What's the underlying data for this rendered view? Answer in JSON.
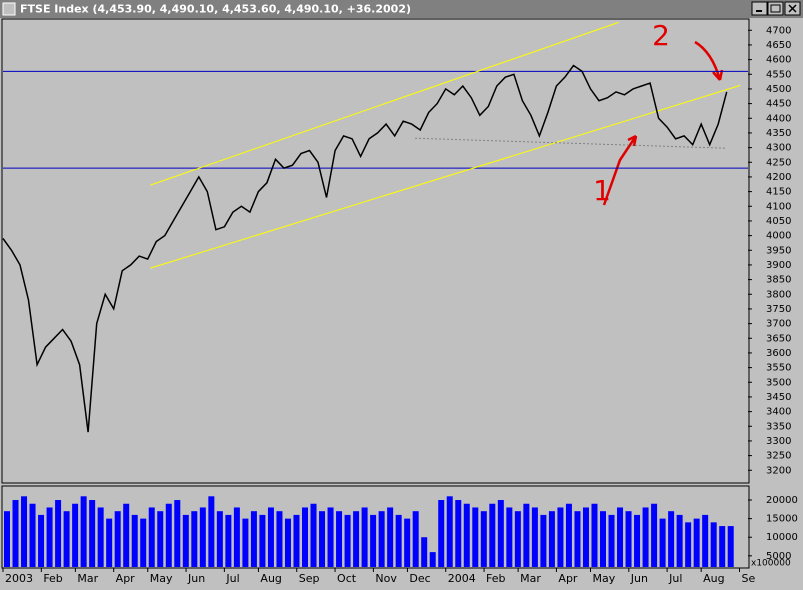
{
  "chart_data": [
    {
      "type": "line",
      "title": "FTSE Index (4,453.90, 4,490.10, 4,453.60, 4,490.10, +36.2002)",
      "x": [
        0,
        1,
        2,
        3,
        4,
        5,
        6,
        7,
        8,
        9,
        10,
        11,
        12,
        13,
        14,
        15,
        16,
        17,
        18,
        19,
        20,
        21,
        22,
        23,
        24,
        25,
        26,
        27,
        28,
        29,
        30,
        31,
        32,
        33,
        34,
        35,
        36,
        37,
        38,
        39,
        40,
        41,
        42,
        43,
        44,
        45,
        46,
        47,
        48,
        49,
        50,
        51,
        52,
        53,
        54,
        55,
        56,
        57,
        58,
        59,
        60,
        61,
        62,
        63,
        64,
        65,
        66,
        67,
        68,
        69,
        70,
        71,
        72,
        73,
        74,
        75,
        76,
        77,
        78,
        79,
        80,
        81,
        82,
        83,
        84,
        85
      ],
      "series": [
        {
          "color": "#000000",
          "values": [
            3990,
            3950,
            3900,
            3780,
            3560,
            3620,
            3650,
            3680,
            3640,
            3560,
            3330,
            3700,
            3800,
            3750,
            3880,
            3900,
            3930,
            3920,
            3980,
            4000,
            4050,
            4100,
            4150,
            4200,
            4150,
            4020,
            4030,
            4080,
            4100,
            4080,
            4150,
            4180,
            4260,
            4230,
            4240,
            4280,
            4290,
            4250,
            4130,
            4290,
            4340,
            4330,
            4270,
            4330,
            4350,
            4380,
            4340,
            4390,
            4380,
            4360,
            4420,
            4450,
            4500,
            4480,
            4510,
            4470,
            4410,
            4440,
            4510,
            4540,
            4550,
            4460,
            4410,
            4340,
            4420,
            4510,
            4540,
            4580,
            4560,
            4500,
            4460,
            4470,
            4490,
            4480,
            4500,
            4510,
            4520,
            4400,
            4370,
            4330,
            4340,
            4310,
            4380,
            4310,
            4380,
            4490
          ]
        }
      ],
      "xlim": [
        0,
        87.5
      ],
      "ylim": [
        3160,
        4735
      ],
      "yticks": [
        3200,
        3250,
        3300,
        3350,
        3400,
        3450,
        3500,
        3550,
        3600,
        3650,
        3700,
        3750,
        3800,
        3850,
        3900,
        3950,
        4000,
        4050,
        4100,
        4150,
        4200,
        4250,
        4300,
        4350,
        4400,
        4450,
        4500,
        4550,
        4600,
        4650,
        4700
      ],
      "hlines": [
        {
          "value": 4560,
          "color": "#0000c0"
        },
        {
          "value": 4230,
          "color": "#0000c0"
        }
      ],
      "trend_lines": [
        {
          "color": "#ffff00",
          "x": [
            17.3,
            72.3
          ],
          "y": [
            4172,
            4727
          ]
        },
        {
          "color": "#ffff00",
          "x": [
            17.3,
            86.6
          ],
          "y": [
            3889,
            4512
          ]
        },
        {
          "color": "#808080",
          "x": [
            48.4,
            84.8
          ],
          "y": [
            4332,
            4298
          ]
        }
      ],
      "annotations": [
        "1",
        "2"
      ]
    },
    {
      "type": "bar",
      "x": [
        0,
        1,
        2,
        3,
        4,
        5,
        6,
        7,
        8,
        9,
        10,
        11,
        12,
        13,
        14,
        15,
        16,
        17,
        18,
        19,
        20,
        21,
        22,
        23,
        24,
        25,
        26,
        27,
        28,
        29,
        30,
        31,
        32,
        33,
        34,
        35,
        36,
        37,
        38,
        39,
        40,
        41,
        42,
        43,
        44,
        45,
        46,
        47,
        48,
        49,
        50,
        51,
        52,
        53,
        54,
        55,
        56,
        57,
        58,
        59,
        60,
        61,
        62,
        63,
        64,
        65,
        66,
        67,
        68,
        69,
        70,
        71,
        72,
        73,
        74,
        75,
        76,
        77,
        78,
        79,
        80,
        81,
        82,
        83,
        84,
        85
      ],
      "values": [
        17000,
        20000,
        21000,
        19000,
        16000,
        18000,
        20000,
        17000,
        19000,
        21000,
        20000,
        18000,
        15000,
        17000,
        19000,
        16000,
        15000,
        18000,
        17000,
        19000,
        20000,
        16000,
        17000,
        18000,
        21000,
        17000,
        16000,
        18000,
        15000,
        17000,
        16000,
        18000,
        17000,
        15000,
        16000,
        18000,
        19000,
        17000,
        18000,
        17000,
        16000,
        17000,
        18000,
        16000,
        17000,
        18000,
        16000,
        15000,
        17000,
        10000,
        6000,
        20000,
        21000,
        20000,
        19000,
        18000,
        17000,
        19000,
        20000,
        18000,
        17000,
        19000,
        18000,
        16000,
        17000,
        18000,
        19000,
        17000,
        18000,
        19000,
        17000,
        16000,
        18000,
        17000,
        16000,
        18000,
        19000,
        15000,
        17000,
        16000,
        14000,
        15000,
        16000,
        14000,
        13000,
        13000
      ],
      "color": "#0000ff",
      "xlim": [
        0,
        87.5
      ],
      "ylim": [
        2000,
        23500
      ],
      "yticks": [
        5000,
        10000,
        15000,
        20000
      ],
      "y_unit": "x100000",
      "xticks": [
        {
          "value": 0,
          "label": "2003"
        },
        {
          "value": 4.5,
          "label": "Feb"
        },
        {
          "value": 8.5,
          "label": "Mar"
        },
        {
          "value": 13,
          "label": "Apr"
        },
        {
          "value": 17,
          "label": "May"
        },
        {
          "value": 21.5,
          "label": "Jun"
        },
        {
          "value": 26,
          "label": "Jul"
        },
        {
          "value": 30,
          "label": "Aug"
        },
        {
          "value": 34.5,
          "label": "Sep"
        },
        {
          "value": 39,
          "label": "Oct"
        },
        {
          "value": 43.5,
          "label": "Nov"
        },
        {
          "value": 47.5,
          "label": "Dec"
        },
        {
          "value": 52,
          "label": "2004"
        },
        {
          "value": 56.5,
          "label": "Feb"
        },
        {
          "value": 60.5,
          "label": "Mar"
        },
        {
          "value": 65,
          "label": "Apr"
        },
        {
          "value": 69,
          "label": "May"
        },
        {
          "value": 73.5,
          "label": "Jun"
        },
        {
          "value": 78,
          "label": "Jul"
        },
        {
          "value": 82,
          "label": "Aug"
        },
        {
          "value": 86.5,
          "label": "Se"
        }
      ]
    }
  ]
}
